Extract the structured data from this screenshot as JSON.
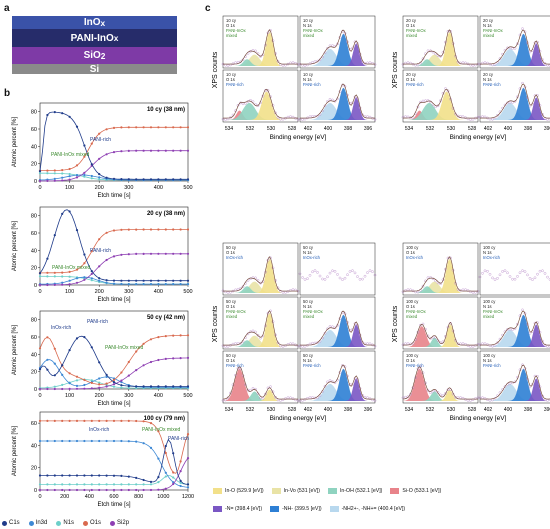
{
  "panels": {
    "a": "a",
    "b": "b",
    "c": "c"
  },
  "stack": {
    "layers": [
      {
        "html": "InO<sub>x</sub>",
        "color": "#3a52a8"
      },
      {
        "html": "PANI-InO<sub>x</sub>",
        "color": "#262c6a"
      },
      {
        "html": "SiO<sub>2</sub>",
        "color": "#7e3aa6"
      },
      {
        "html": "Si",
        "color": "#8a8a8a"
      }
    ]
  },
  "profiles": {
    "ylabel": "Atomic percent [%]",
    "xlabel": "Etch time [s]",
    "colors": {
      "C1s": "#1f3b8a",
      "In3d": "#3d88d4",
      "N1s": "#6ccfc9",
      "O1s": "#d9694e",
      "Si2p": "#8e3fb3"
    },
    "legend": [
      "C1s",
      "In3d",
      "N1s",
      "O1s",
      "Si2p"
    ],
    "plots": [
      {
        "title": "10 cy (38 nm)",
        "yticks": [
          "0",
          "20",
          "40",
          "60",
          "80"
        ],
        "xticks": [
          "0",
          "100",
          "200",
          "300",
          "400",
          "500"
        ],
        "labels": [
          {
            "t": "PANI-rich",
            "x": 55,
            "y": 38
          },
          {
            "t": "PANI-InOx mixed",
            "x": 16,
            "y": 53
          }
        ]
      },
      {
        "title": "20 cy (38 nm)",
        "yticks": [
          "0",
          "20",
          "40",
          "60",
          "80"
        ],
        "xticks": [
          "0",
          "100",
          "200",
          "300",
          "400",
          "500"
        ],
        "labels": [
          {
            "t": "PANI-rich",
            "x": 55,
            "y": 45
          },
          {
            "t": "PANI-InOx mixed",
            "x": 17,
            "y": 62
          }
        ]
      },
      {
        "title": "50 cy (42 nm)",
        "yticks": [
          "0",
          "20",
          "40",
          "60",
          "80"
        ],
        "xticks": [
          "0",
          "100",
          "200",
          "300",
          "400",
          "500"
        ],
        "labels": [
          {
            "t": "InOx-rich",
            "x": 16,
            "y": 18
          },
          {
            "t": "PANI-rich",
            "x": 52,
            "y": 12
          },
          {
            "t": "PANI-InOx mixed",
            "x": 70,
            "y": 38
          }
        ]
      },
      {
        "title": "100 cy (79 nm)",
        "yticks": [
          "0",
          "20",
          "40",
          "60"
        ],
        "xticks": [
          "0",
          "200",
          "400",
          "600",
          "800",
          "1000",
          "1200"
        ],
        "labels": [
          {
            "t": "InOx-rich",
            "x": 54,
            "y": 19
          },
          {
            "t": "PANI-InOx mixed",
            "x": 107,
            "y": 19
          },
          {
            "t": "PANI-rich",
            "x": 133,
            "y": 28
          }
        ]
      }
    ]
  },
  "xps": {
    "ylabel": "XPS counts",
    "xlabel": "Binding energy [eV]",
    "o_ticks": [
      "534",
      "532",
      "530",
      "528"
    ],
    "n_ticks": [
      "402",
      "400",
      "398",
      "396"
    ],
    "groups": [
      {
        "cells": [
          [
            "10 cy",
            "O 1s",
            "PANI-InOx",
            "mixed"
          ],
          [
            "10 cy",
            "N 1s",
            "PANI-InOx",
            "mixed"
          ],
          [
            "10 cy",
            "O 1s",
            "PANI-rich"
          ],
          [
            "10 cy",
            "N 1s",
            "PANI-rich"
          ]
        ]
      },
      {
        "cells": [
          [
            "20 cy",
            "O 1s",
            "PANI-InOx",
            "mixed"
          ],
          [
            "20 cy",
            "N 1s",
            "PANI-InOx",
            "mixed"
          ],
          [
            "20 cy",
            "O 1s",
            "PANI-rich"
          ],
          [
            "20 cy",
            "N 1s",
            "PANI-rich"
          ]
        ]
      },
      {
        "cells": [
          [
            "50 cy",
            "O 1s",
            "InOx-rich"
          ],
          [
            "50 cy",
            "N 1s",
            "InOx-rich"
          ],
          [
            "50 cy",
            "O 1s",
            "PANI-InOx",
            "mixed"
          ],
          [
            "50 cy",
            "N 1s",
            "PANI-InOx",
            "mixed"
          ],
          [
            "50 cy",
            "O 1s",
            "PANI-rich"
          ],
          [
            "50 cy",
            "N 1s",
            "PANI-rich"
          ]
        ]
      },
      {
        "cells": [
          [
            "100 cy",
            "O 1s",
            "InOx-rich"
          ],
          [
            "100 cy",
            "N 1s",
            "InOx-rich"
          ],
          [
            "100 cy",
            "O 1s",
            "PANI-InOx",
            "mixed"
          ],
          [
            "100 cy",
            "N 1s",
            "PANI-InOx",
            "mixed"
          ],
          [
            "100 cy",
            "O 1s",
            "PANI-rich"
          ],
          [
            "100 cy",
            "N 1s",
            "PANI-rich"
          ]
        ]
      }
    ]
  },
  "legend": {
    "row1": [
      {
        "t": "In-O (529.9 [eV])",
        "color": "#f2e08a"
      },
      {
        "t": "In-Vo (531 [eV])",
        "color": "#e9e3a6"
      },
      {
        "t": "In-OH (532.1 [eV])",
        "color": "#8fd3c0"
      },
      {
        "t": "Si-O (533.1 [eV])",
        "color": "#e8838a"
      }
    ],
    "row2": [
      {
        "t": "-N= (398.4 [eV])",
        "color": "#7a57c4"
      },
      {
        "t": "-NH- (399.5 [eV])",
        "color": "#2d7fd4"
      },
      {
        "t": "-NH2+-, -NH+= (400.4 [eV])",
        "color": "#b8d8ee"
      }
    ]
  }
}
